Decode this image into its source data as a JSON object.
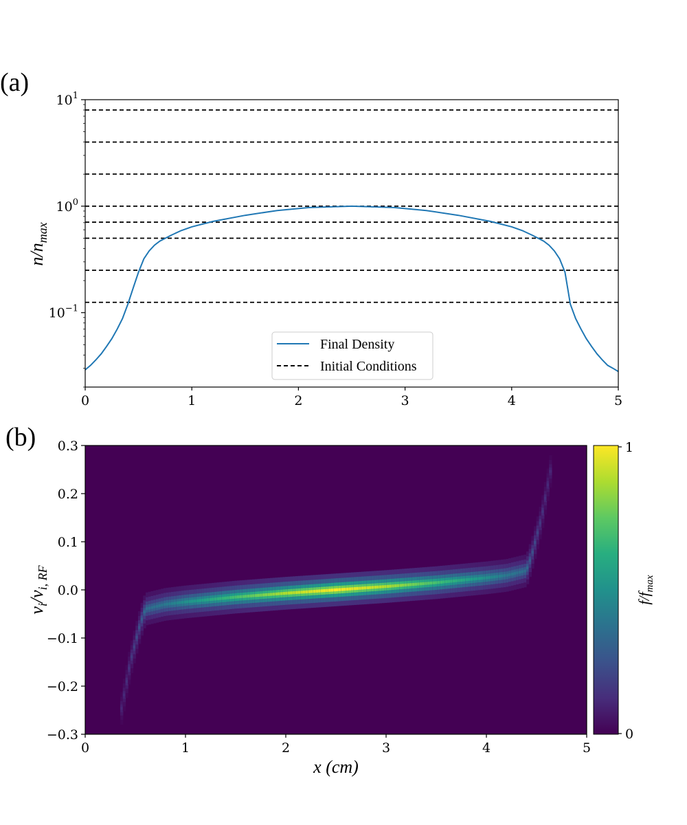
{
  "chart_data": [
    {
      "panel": "(a)",
      "type": "line",
      "title": "",
      "xlabel": "",
      "ylabel": "n/n_max",
      "yscale": "log",
      "xlim": [
        0,
        5
      ],
      "ylim": [
        0.02,
        10
      ],
      "x_ticks": [
        0,
        1,
        2,
        3,
        4,
        5
      ],
      "y_ticks": [
        0.1,
        1,
        10
      ],
      "y_tick_labels": {
        "base": "10",
        "exponents": [
          "−1",
          "0",
          "1"
        ]
      },
      "legend": {
        "position": "lower-center",
        "entries": [
          {
            "label": "Final Density",
            "style": "solid",
            "color": "#1f77b4"
          },
          {
            "label": "Initial Conditions",
            "style": "dashed",
            "color": "#000000"
          }
        ]
      },
      "series": [
        {
          "name": "Final Density",
          "color": "#1f77b4",
          "x": [
            0,
            0.05,
            0.1,
            0.15,
            0.2,
            0.25,
            0.3,
            0.35,
            0.4,
            0.45,
            0.5,
            0.55,
            0.6,
            0.65,
            0.7,
            0.8,
            0.9,
            1.0,
            1.2,
            1.5,
            1.8,
            2.1,
            2.5,
            2.9,
            3.2,
            3.5,
            3.8,
            4.0,
            4.1,
            4.2,
            4.3,
            4.35,
            4.4,
            4.45,
            4.5,
            4.55,
            4.6,
            4.65,
            4.7,
            4.75,
            4.8,
            4.85,
            4.9,
            4.95,
            5.0
          ],
          "y": [
            0.029,
            0.032,
            0.036,
            0.041,
            0.048,
            0.057,
            0.07,
            0.088,
            0.12,
            0.17,
            0.24,
            0.32,
            0.38,
            0.43,
            0.47,
            0.53,
            0.59,
            0.64,
            0.72,
            0.82,
            0.91,
            0.97,
            1.0,
            0.97,
            0.91,
            0.82,
            0.72,
            0.64,
            0.59,
            0.53,
            0.47,
            0.43,
            0.38,
            0.32,
            0.24,
            0.12,
            0.088,
            0.07,
            0.057,
            0.048,
            0.041,
            0.036,
            0.032,
            0.03,
            0.028
          ]
        },
        {
          "name": "Initial Conditions",
          "color": "#000000",
          "style": "dashed",
          "levels": [
            8,
            4,
            2,
            1,
            0.707,
            0.5,
            0.25,
            0.125
          ]
        }
      ]
    },
    {
      "panel": "(b)",
      "type": "heatmap",
      "title": "",
      "xlabel": "x (cm)",
      "ylabel": "v_i/v_i,RF",
      "xlim": [
        0,
        5
      ],
      "ylim": [
        -0.3,
        0.3
      ],
      "x_ticks": [
        0,
        1,
        2,
        3,
        4,
        5
      ],
      "y_ticks": [
        -0.3,
        -0.2,
        -0.1,
        0.0,
        0.1,
        0.2,
        0.3
      ],
      "y_tick_labels": [
        "−0.3",
        "−0.2",
        "−0.1",
        "0.0",
        "0.1",
        "0.2",
        "0.3"
      ],
      "colormap": "viridis",
      "colorbar": {
        "label": "f/f_max",
        "min": 0,
        "max": 1,
        "ticks": [
          "0",
          "1"
        ]
      },
      "distribution": {
        "description_points": "center velocity and spread vs x",
        "x": [
          0.35,
          0.45,
          0.55,
          0.6,
          0.8,
          1.0,
          1.5,
          2.0,
          2.5,
          3.0,
          3.5,
          4.0,
          4.2,
          4.4,
          4.45,
          4.55,
          4.65
        ],
        "center": [
          -0.26,
          -0.15,
          -0.07,
          -0.04,
          -0.03,
          -0.025,
          -0.015,
          -0.007,
          0.0,
          0.007,
          0.015,
          0.025,
          0.03,
          0.04,
          0.07,
          0.15,
          0.26
        ],
        "peak": [
          0.1,
          0.15,
          0.25,
          0.35,
          0.4,
          0.5,
          0.7,
          0.88,
          1.0,
          0.88,
          0.7,
          0.5,
          0.4,
          0.35,
          0.25,
          0.15,
          0.1
        ]
      }
    }
  ],
  "colors": {
    "background_low": "#440154",
    "peak": "#fde725",
    "line": "#1f77b4"
  }
}
